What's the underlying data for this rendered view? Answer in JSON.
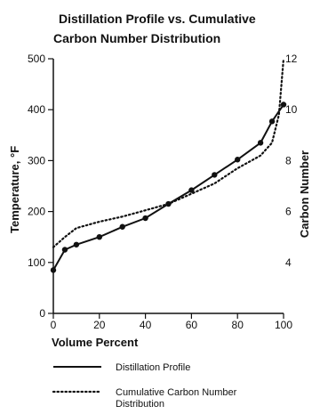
{
  "chart_data": {
    "type": "line",
    "title_lines": [
      "Distillation Profile vs. Cumulative",
      "Carbon Number Distribution"
    ],
    "xlabel": "Volume Percent",
    "ylabel": "Temperature, °F",
    "y2label": "Carbon Number",
    "xlim": [
      0,
      100
    ],
    "ylim": [
      0,
      500
    ],
    "y2lim": [
      2,
      12
    ],
    "x_ticks": [
      "0",
      "20",
      "40",
      "60",
      "80",
      "100"
    ],
    "y_ticks": [
      "0",
      "100",
      "200",
      "300",
      "400",
      "500"
    ],
    "y2_ticks": [
      "4",
      "6",
      "8",
      "10",
      "12"
    ],
    "grid": false,
    "legend_position": "bottom",
    "series": [
      {
        "name": "Distillation Profile",
        "axis": "left",
        "style": "solid",
        "markers": true,
        "x": [
          0,
          5,
          10,
          20,
          30,
          40,
          50,
          60,
          70,
          80,
          90,
          95,
          100
        ],
        "y": [
          85,
          125,
          135,
          150,
          170,
          187,
          215,
          242,
          272,
          302,
          335,
          377,
          410
        ]
      },
      {
        "name": "Cumulative Carbon Number Distribution",
        "axis": "right",
        "style": "dotted",
        "markers": false,
        "x": [
          0,
          5,
          10,
          20,
          30,
          40,
          50,
          60,
          70,
          80,
          90,
          95,
          98,
          100
        ],
        "y": [
          4.6,
          5.0,
          5.35,
          5.6,
          5.8,
          6.05,
          6.3,
          6.7,
          7.1,
          7.7,
          8.2,
          8.7,
          9.8,
          12.0
        ]
      }
    ]
  }
}
